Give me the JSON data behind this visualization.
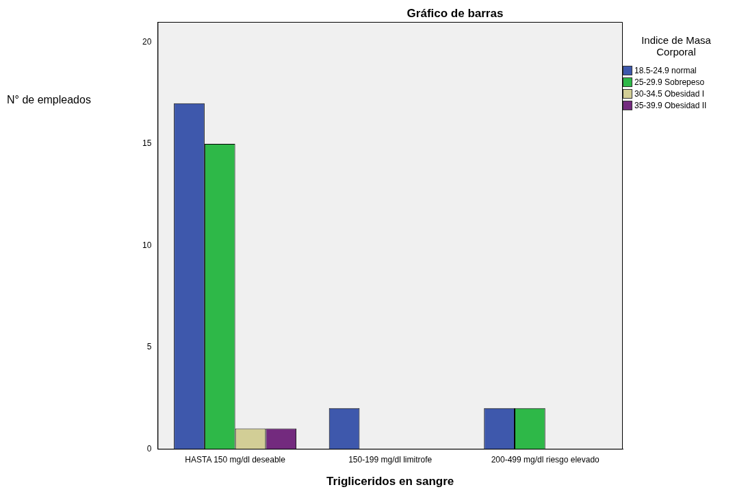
{
  "chart_data": {
    "type": "bar",
    "title": "Gráfico de barras",
    "xlabel": "Trigliceridos en sangre",
    "ylabel": "N° de empleados",
    "legend_title": "Indice de Masa Corporal",
    "legend": "right",
    "categories": [
      "HASTA 150 mg/dl deseable",
      "150-199 mg/dl limitrofe",
      "200-499 mg/dl riesgo elevado"
    ],
    "series": [
      {
        "name": "18.5-24.9 normal",
        "color": "#3e58ac",
        "values": [
          17,
          2,
          2
        ]
      },
      {
        "name": "25-29.9 Sobrepeso",
        "color": "#2eb848",
        "values": [
          15,
          null,
          2
        ]
      },
      {
        "name": "30-34.5 Obesidad I",
        "color": "#d2ce96",
        "values": [
          1,
          null,
          null
        ]
      },
      {
        "name": "35-39.9 Obesidad II",
        "color": "#732a7e",
        "values": [
          1,
          null,
          null
        ]
      }
    ],
    "ylim": [
      0,
      21
    ],
    "yticks": [
      0,
      5,
      10,
      15,
      20
    ],
    "grid": false
  }
}
